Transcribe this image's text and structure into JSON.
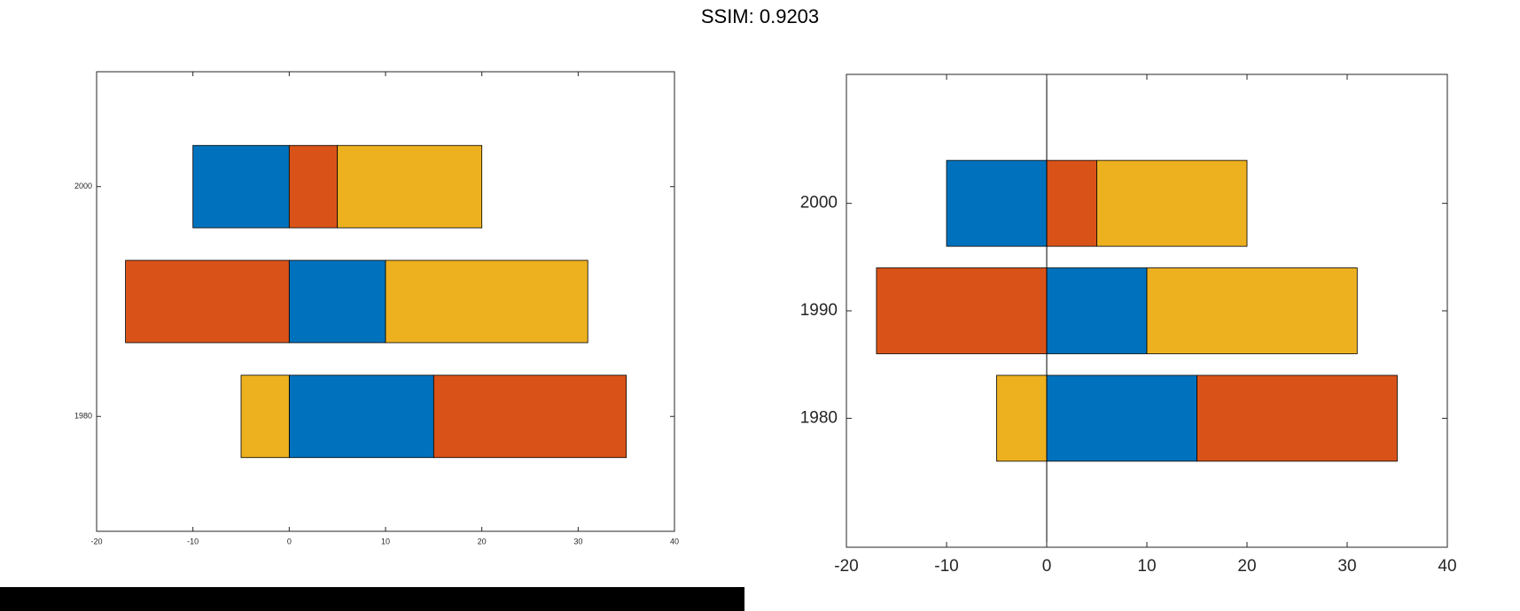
{
  "header": {
    "title": "SSIM: 0.9203"
  },
  "colors": {
    "blue": "#0072bd",
    "orange": "#d95319",
    "yellow": "#edb120"
  },
  "chart_data": [
    {
      "type": "bar",
      "orientation": "horizontal",
      "stacked": true,
      "panel": "left",
      "categories": [
        1980,
        1990,
        2000
      ],
      "y_tick_labels": [
        "1980",
        "2000"
      ],
      "x_tick_labels": [
        "-20",
        "-10",
        "0",
        "10",
        "20",
        "30",
        "40"
      ],
      "xlim": [
        -20,
        40
      ],
      "ylim": [
        1970,
        2010
      ],
      "segments": [
        {
          "category": 1980,
          "start": 0,
          "end": 15,
          "color": "blue"
        },
        {
          "category": 1980,
          "start": 15,
          "end": 35,
          "color": "orange"
        },
        {
          "category": 1980,
          "start": -5,
          "end": 0,
          "color": "yellow"
        },
        {
          "category": 1990,
          "start": -17,
          "end": 0,
          "color": "orange"
        },
        {
          "category": 1990,
          "start": 0,
          "end": 10,
          "color": "blue"
        },
        {
          "category": 1990,
          "start": 10,
          "end": 31,
          "color": "yellow"
        },
        {
          "category": 2000,
          "start": -10,
          "end": 0,
          "color": "blue"
        },
        {
          "category": 2000,
          "start": 0,
          "end": 5,
          "color": "orange"
        },
        {
          "category": 2000,
          "start": 5,
          "end": 20,
          "color": "yellow"
        }
      ],
      "title": "",
      "xlabel": "",
      "ylabel": "",
      "baseline_visible": false,
      "grid": false
    },
    {
      "type": "bar",
      "orientation": "horizontal",
      "stacked": true,
      "panel": "right",
      "categories": [
        1980,
        1990,
        2000
      ],
      "y_tick_labels": [
        "1980",
        "1990",
        "2000"
      ],
      "x_tick_labels": [
        "-20",
        "-10",
        "0",
        "10",
        "20",
        "30",
        "40"
      ],
      "xlim": [
        -20,
        40
      ],
      "ylim": [
        1968,
        2012
      ],
      "segments": [
        {
          "category": 1980,
          "start": 0,
          "end": 15,
          "color": "blue"
        },
        {
          "category": 1980,
          "start": 15,
          "end": 35,
          "color": "orange"
        },
        {
          "category": 1980,
          "start": -5,
          "end": 0,
          "color": "yellow"
        },
        {
          "category": 1990,
          "start": -17,
          "end": 0,
          "color": "orange"
        },
        {
          "category": 1990,
          "start": 0,
          "end": 10,
          "color": "blue"
        },
        {
          "category": 1990,
          "start": 10,
          "end": 31,
          "color": "yellow"
        },
        {
          "category": 2000,
          "start": -10,
          "end": 0,
          "color": "blue"
        },
        {
          "category": 2000,
          "start": 0,
          "end": 5,
          "color": "orange"
        },
        {
          "category": 2000,
          "start": 5,
          "end": 20,
          "color": "yellow"
        }
      ],
      "title": "",
      "xlabel": "",
      "ylabel": "",
      "baseline_visible": true,
      "grid": false
    }
  ]
}
